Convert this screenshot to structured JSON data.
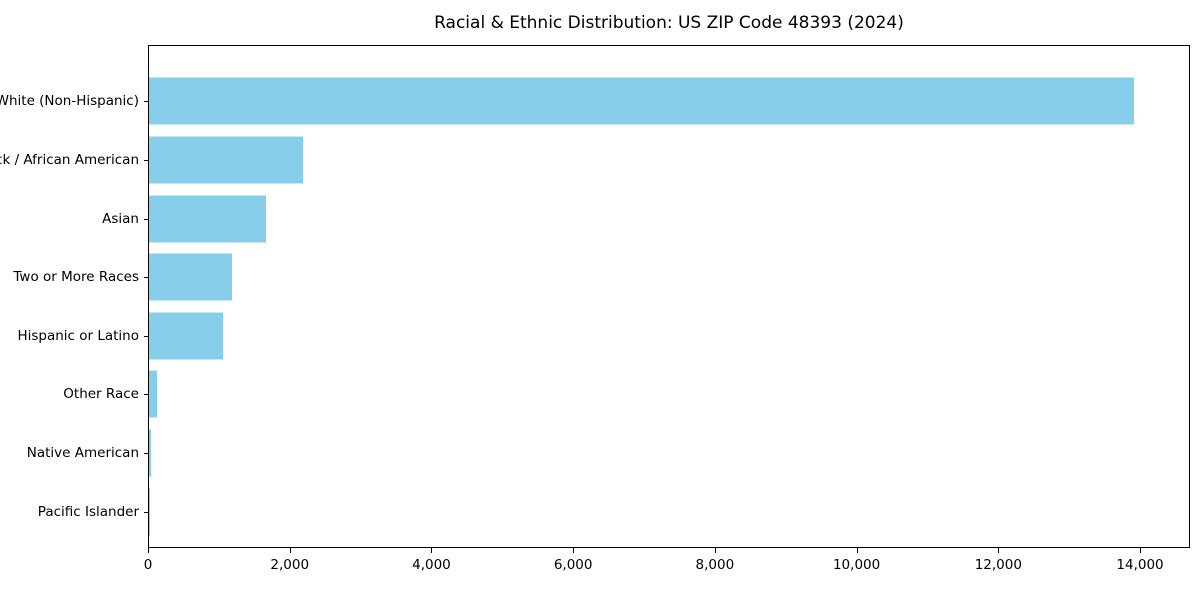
{
  "chart_data": {
    "type": "bar",
    "orientation": "horizontal",
    "title": "Racial & Ethnic Distribution: US ZIP Code 48393 (2024)",
    "categories": [
      "White (Non-Hispanic)",
      "Black / African American",
      "Asian",
      "Two or More Races",
      "Hispanic or Latino",
      "Other Race",
      "Native American",
      "Pacific Islander"
    ],
    "values": [
      13930,
      2180,
      1650,
      1180,
      1050,
      110,
      25,
      5
    ],
    "xlabel": "",
    "ylabel": "",
    "xlim": [
      0,
      14705
    ],
    "x_ticks": [
      0,
      2000,
      4000,
      6000,
      8000,
      10000,
      12000,
      14000
    ],
    "x_tick_labels": [
      "0",
      "2,000",
      "4,000",
      "6,000",
      "8,000",
      "10,000",
      "12,000",
      "14,000"
    ],
    "grid": "off",
    "legend": "none",
    "bar_color": "#87CEEB",
    "background_color": "#ffffff",
    "frame_color": "#000000"
  }
}
